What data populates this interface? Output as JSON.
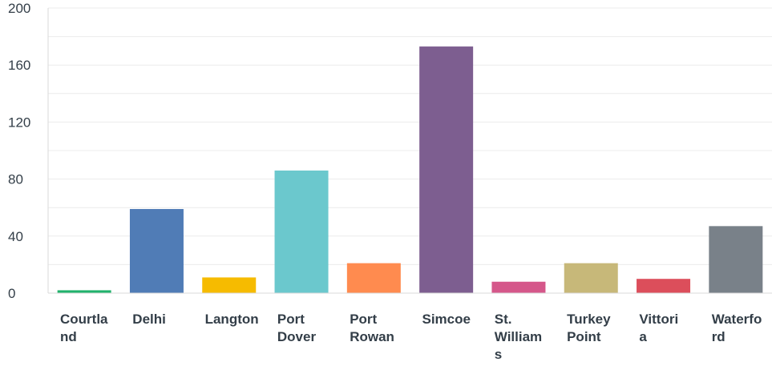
{
  "chart_data": {
    "type": "bar",
    "title": "",
    "xlabel": "",
    "ylabel": "",
    "ylim": [
      0,
      200
    ],
    "yticks": [
      0,
      40,
      80,
      120,
      160,
      200
    ],
    "grid": "horizontal",
    "categories": [
      [
        "Courtla",
        "nd"
      ],
      [
        "Delhi"
      ],
      [
        "Langton"
      ],
      [
        "Port",
        "Dover"
      ],
      [
        "Port",
        "Rowan"
      ],
      [
        "Simcoe"
      ],
      [
        "St.",
        "William",
        "s"
      ],
      [
        "Turkey",
        "Point"
      ],
      [
        "Vittori",
        "a"
      ],
      [
        "Waterfo",
        "rd"
      ]
    ],
    "values": [
      2,
      59,
      11,
      86,
      21,
      173,
      8,
      21,
      10,
      47
    ],
    "colors": [
      "#20b26c",
      "#507cb6",
      "#f6bb00",
      "#6bc8cd",
      "#ff8b4f",
      "#7d5e90",
      "#d5578a",
      "#c7b879",
      "#dc4e5b",
      "#798189"
    ]
  }
}
